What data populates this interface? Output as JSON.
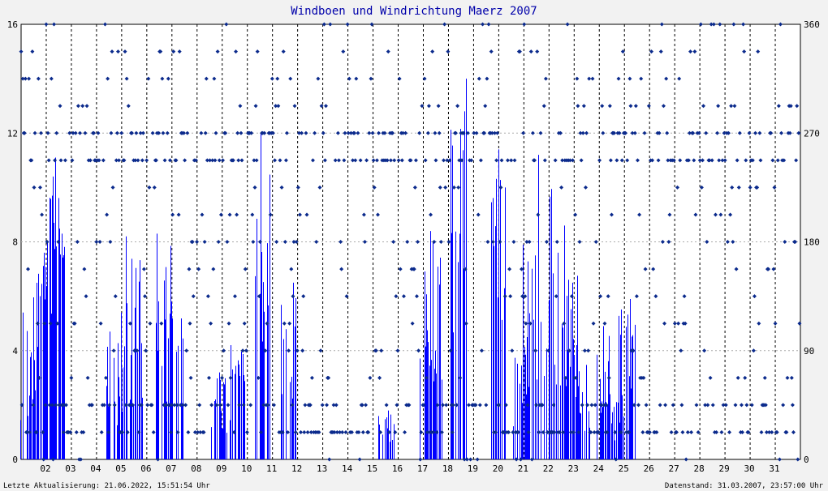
{
  "chart_data": {
    "type": "bar+scatter",
    "title": "Windboen und Windrichtung Maerz 2007",
    "footer_left": "Letzte Aktualisierung: 21.06.2022, 15:51:54 Uhr",
    "footer_right": "Datenstand: 31.03.2007, 23:57:00 Uhr",
    "x_labels": [
      "02",
      "03",
      "04",
      "05",
      "06",
      "07",
      "08",
      "09",
      "10",
      "11",
      "12",
      "13",
      "14",
      "15",
      "16",
      "17",
      "18",
      "19",
      "20",
      "21",
      "22",
      "23",
      "24",
      "25",
      "26",
      "27",
      "28",
      "29",
      "30",
      "31"
    ],
    "day_range": [
      1,
      32
    ],
    "y_left": {
      "ticks": [
        0,
        4,
        8,
        12,
        16
      ],
      "range": [
        0,
        16
      ]
    },
    "y_right": {
      "ticks": [
        0,
        90,
        180,
        270,
        360
      ],
      "range": [
        0,
        360
      ]
    },
    "grid": true,
    "colors": {
      "gust": "#0000ff",
      "direction": "#0b2a8c",
      "title": "#0000aa",
      "grid": "#aaaaaa",
      "divider": "#000000"
    },
    "series": [
      {
        "kind": "gust_bars",
        "approx_peaks": [
          {
            "day": 1.3,
            "value": 5.4
          },
          {
            "day": 1.7,
            "value": 7.6
          },
          {
            "day": 2.0,
            "value": 8.7
          },
          {
            "day": 2.3,
            "value": 11.1
          },
          {
            "day": 2.5,
            "value": 9.7
          },
          {
            "day": 4.7,
            "value": 4.7
          },
          {
            "day": 5.2,
            "value": 5.4
          },
          {
            "day": 5.5,
            "value": 8.2
          },
          {
            "day": 6.7,
            "value": 8.3
          },
          {
            "day": 7.1,
            "value": 5.8
          },
          {
            "day": 8.9,
            "value": 3.2
          },
          {
            "day": 9.6,
            "value": 4.2
          },
          {
            "day": 10.6,
            "value": 12.0
          },
          {
            "day": 11.6,
            "value": 6.5
          },
          {
            "day": 15.5,
            "value": 1.8
          },
          {
            "day": 17.2,
            "value": 8.4
          },
          {
            "day": 17.6,
            "value": 8.0
          },
          {
            "day": 18.4,
            "value": 14.0
          },
          {
            "day": 19.9,
            "value": 11.4
          },
          {
            "day": 20.9,
            "value": 4.5
          },
          {
            "day": 21.2,
            "value": 7.9
          },
          {
            "day": 21.9,
            "value": 11.2
          },
          {
            "day": 22.6,
            "value": 7.6
          },
          {
            "day": 22.9,
            "value": 8.6
          },
          {
            "day": 23.3,
            "value": 4.2
          },
          {
            "day": 24.1,
            "value": 4.9
          },
          {
            "day": 24.7,
            "value": 2.3
          },
          {
            "day": 25.1,
            "value": 5.9
          }
        ]
      },
      {
        "kind": "direction_points",
        "dominant_degrees": [
          247.5,
          270,
          45,
          22.5
        ]
      }
    ]
  }
}
